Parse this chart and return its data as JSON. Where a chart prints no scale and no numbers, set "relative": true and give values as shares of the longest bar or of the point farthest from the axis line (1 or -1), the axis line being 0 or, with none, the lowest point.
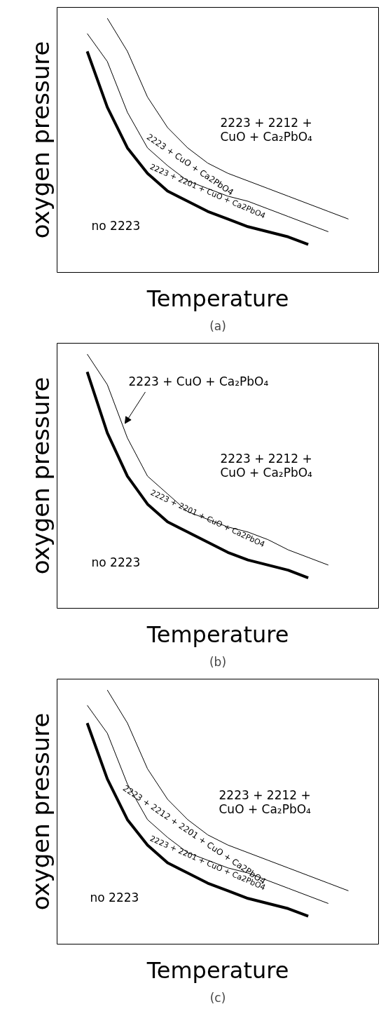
{
  "chart_data": [
    {
      "type": "line",
      "relative": true,
      "xlabel": "Temperature",
      "ylabel": "oxygen pressure",
      "tick_labels": false,
      "categories": [
        null,
        null,
        null,
        null,
        null,
        null,
        null,
        null,
        null,
        null,
        null,
        null,
        null,
        null,
        null,
        null
      ],
      "series": [
        {
          "color": "#000000",
          "values": [
            null,
            0.87,
            0.65,
            0.49,
            0.39,
            0.32,
            0.28,
            0.24,
            0.21,
            0.18,
            0.16,
            0.14,
            0.11,
            null,
            null,
            null
          ]
        },
        {
          "color": "#000000",
          "values": [
            null,
            0.94,
            0.83,
            0.63,
            0.49,
            0.42,
            0.36,
            0.33,
            0.3,
            0.28,
            0.25,
            0.22,
            0.19,
            0.16,
            null,
            null
          ]
        },
        {
          "color": "#000000",
          "values": [
            null,
            null,
            1.0,
            0.87,
            0.69,
            0.57,
            0.49,
            0.43,
            0.39,
            0.36,
            0.33,
            0.3,
            0.27,
            0.24,
            0.21,
            null
          ]
        }
      ],
      "annotations": [
        "(a)",
        "2223 + 2212 +\nCuO + Ca₂PbO₄",
        "no 2223",
        "2223 + CuO + Ca2PbO4",
        "2223 + 2201 + CuO + Ca2PbO4"
      ]
    },
    {
      "type": "line",
      "relative": true,
      "xlabel": "Temperature",
      "ylabel": "oxygen pressure",
      "tick_labels": false,
      "categories": [
        null,
        null,
        null,
        null,
        null,
        null,
        null,
        null,
        null,
        null,
        null,
        null,
        null,
        null,
        null,
        null
      ],
      "series": [
        {
          "color": "#000000",
          "values": [
            null,
            0.93,
            0.69,
            0.52,
            0.41,
            0.34,
            0.3,
            0.26,
            0.22,
            0.19,
            0.17,
            0.15,
            0.12,
            null,
            null,
            null
          ]
        },
        {
          "color": "#000000",
          "values": [
            null,
            1.0,
            0.88,
            0.67,
            0.52,
            0.45,
            0.38,
            0.35,
            0.32,
            0.3,
            0.27,
            0.23,
            0.2,
            0.17,
            null,
            null
          ]
        }
      ],
      "annotations": [
        "(b)",
        "2223 + 2212 +\nCuO + Ca₂PbO₄",
        "2223 + CuO + Ca₂PbO₄",
        "no 2223",
        "2223 + 2201 + CuO + Ca2PbO4"
      ]
    },
    {
      "type": "line",
      "relative": true,
      "xlabel": "Temperature",
      "ylabel": "oxygen pressure",
      "tick_labels": false,
      "categories": [
        null,
        null,
        null,
        null,
        null,
        null,
        null,
        null,
        null,
        null,
        null,
        null,
        null,
        null,
        null,
        null
      ],
      "series": [
        {
          "color": "#000000",
          "values": [
            null,
            0.87,
            0.65,
            0.49,
            0.39,
            0.32,
            0.28,
            0.24,
            0.21,
            0.18,
            0.16,
            0.14,
            0.11,
            null,
            null,
            null
          ]
        },
        {
          "color": "#000000",
          "values": [
            null,
            0.94,
            0.83,
            0.63,
            0.49,
            0.42,
            0.36,
            0.33,
            0.3,
            0.28,
            0.25,
            0.22,
            0.19,
            0.16,
            null,
            null
          ]
        },
        {
          "color": "#000000",
          "values": [
            null,
            null,
            1.0,
            0.87,
            0.69,
            0.57,
            0.49,
            0.43,
            0.39,
            0.36,
            0.33,
            0.3,
            0.27,
            0.24,
            0.21,
            null
          ]
        }
      ],
      "annotations": [
        "(c)",
        "2223 + 2212 +\nCuO + Ca₂PbO₄",
        "no 2223",
        "2223 + 2212 + 2201 + CuO + Ca2PbO4",
        "2223 + 2201 + CuO + Ca2PbO4"
      ]
    }
  ]
}
